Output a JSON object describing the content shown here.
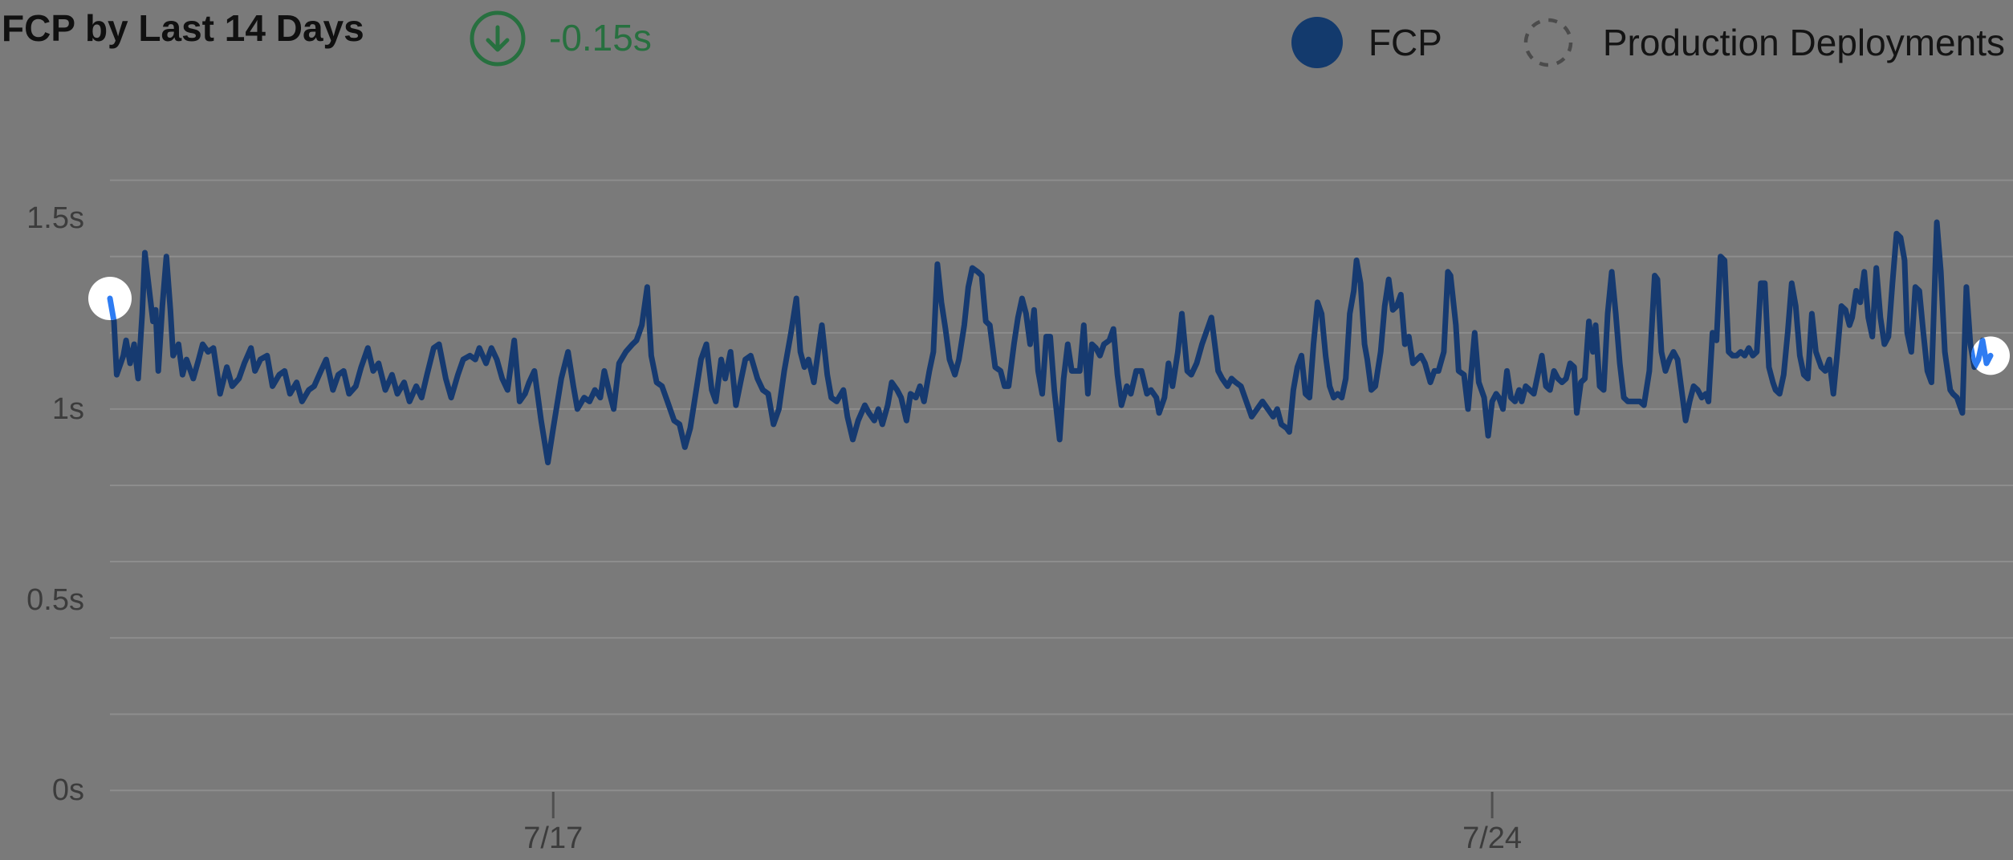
{
  "header": {
    "title": "FCP by Last 14 Days",
    "delta": {
      "value": "-0.15s",
      "direction": "down"
    },
    "legend": [
      {
        "label": "FCP",
        "marker": "filled-circle"
      },
      {
        "label": "Production Deployments",
        "marker": "dashed-circle"
      }
    ]
  },
  "colors": {
    "background": "#7a7a7a",
    "gridline": "#8d8d8d",
    "tick": "#4f4f4f",
    "fcp_line": "#163a70",
    "fcp_dot": "#133a6d",
    "highlight_blue": "#2e7cf2",
    "endpoint_marker": "#ffffff",
    "delta_green": "#27703f",
    "title_text": "#101010",
    "axis_text": "#3c3c3c",
    "deployments_marker": "#4b4b4b"
  },
  "chart_data": {
    "type": "line",
    "title": "FCP by Last 14 Days",
    "series_name": "FCP",
    "unit": "s",
    "x_unit": "days from start of 14-day window",
    "legend_position": "top-right",
    "grid": true,
    "y_axis": {
      "ticks": [
        "0s",
        "0.5s",
        "1s",
        "1.5s"
      ],
      "tick_values": [
        0,
        0.5,
        1,
        1.5
      ],
      "range": [
        0,
        1.72
      ],
      "gridline_step": 0.2,
      "gridline_max": 1.6
    },
    "x_axis": {
      "range_days": [
        0,
        14
      ],
      "ticks": [
        {
          "label": "7/17",
          "d": 3.3
        },
        {
          "label": "7/24",
          "d": 10.29
        }
      ]
    },
    "points": [
      [
        0,
        1.29
      ],
      [
        0.03,
        1.23
      ],
      [
        0.05,
        1.09
      ],
      [
        0.1,
        1.14
      ],
      [
        0.12,
        1.18
      ],
      [
        0.15,
        1.12
      ],
      [
        0.18,
        1.17
      ],
      [
        0.21,
        1.08
      ],
      [
        0.24,
        1.25
      ],
      [
        0.26,
        1.41
      ],
      [
        0.29,
        1.32
      ],
      [
        0.32,
        1.23
      ],
      [
        0.34,
        1.26
      ],
      [
        0.36,
        1.1
      ],
      [
        0.39,
        1.27
      ],
      [
        0.42,
        1.4
      ],
      [
        0.45,
        1.26
      ],
      [
        0.47,
        1.14
      ],
      [
        0.51,
        1.17
      ],
      [
        0.54,
        1.09
      ],
      [
        0.57,
        1.13
      ],
      [
        0.62,
        1.08
      ],
      [
        0.66,
        1.13
      ],
      [
        0.69,
        1.17
      ],
      [
        0.73,
        1.15
      ],
      [
        0.77,
        1.16
      ],
      [
        0.8,
        1.09
      ],
      [
        0.82,
        1.04
      ],
      [
        0.87,
        1.11
      ],
      [
        0.91,
        1.06
      ],
      [
        0.96,
        1.08
      ],
      [
        1,
        1.12
      ],
      [
        1.05,
        1.16
      ],
      [
        1.08,
        1.1
      ],
      [
        1.12,
        1.13
      ],
      [
        1.17,
        1.14
      ],
      [
        1.21,
        1.06
      ],
      [
        1.26,
        1.09
      ],
      [
        1.3,
        1.1
      ],
      [
        1.34,
        1.04
      ],
      [
        1.39,
        1.07
      ],
      [
        1.43,
        1.02
      ],
      [
        1.48,
        1.05
      ],
      [
        1.52,
        1.06
      ],
      [
        1.57,
        1.1
      ],
      [
        1.61,
        1.13
      ],
      [
        1.66,
        1.05
      ],
      [
        1.7,
        1.09
      ],
      [
        1.74,
        1.1
      ],
      [
        1.78,
        1.04
      ],
      [
        1.83,
        1.06
      ],
      [
        1.87,
        1.11
      ],
      [
        1.92,
        1.16
      ],
      [
        1.96,
        1.1
      ],
      [
        2,
        1.12
      ],
      [
        2.05,
        1.05
      ],
      [
        2.1,
        1.09
      ],
      [
        2.14,
        1.04
      ],
      [
        2.19,
        1.07
      ],
      [
        2.23,
        1.02
      ],
      [
        2.28,
        1.06
      ],
      [
        2.32,
        1.03
      ],
      [
        2.36,
        1.09
      ],
      [
        2.41,
        1.16
      ],
      [
        2.45,
        1.17
      ],
      [
        2.5,
        1.08
      ],
      [
        2.54,
        1.03
      ],
      [
        2.59,
        1.09
      ],
      [
        2.63,
        1.13
      ],
      [
        2.68,
        1.14
      ],
      [
        2.72,
        1.13
      ],
      [
        2.75,
        1.16
      ],
      [
        2.8,
        1.12
      ],
      [
        2.84,
        1.16
      ],
      [
        2.88,
        1.13
      ],
      [
        2.92,
        1.08
      ],
      [
        2.96,
        1.05
      ],
      [
        3.01,
        1.18
      ],
      [
        3.05,
        1.02
      ],
      [
        3.09,
        1.04
      ],
      [
        3.12,
        1.07
      ],
      [
        3.16,
        1.1
      ],
      [
        3.21,
        0.97
      ],
      [
        3.26,
        0.86
      ],
      [
        3.3,
        0.95
      ],
      [
        3.36,
        1.08
      ],
      [
        3.41,
        1.15
      ],
      [
        3.45,
        1.06
      ],
      [
        3.48,
        1
      ],
      [
        3.53,
        1.03
      ],
      [
        3.57,
        1.02
      ],
      [
        3.61,
        1.05
      ],
      [
        3.65,
        1.03
      ],
      [
        3.68,
        1.1
      ],
      [
        3.72,
        1.04
      ],
      [
        3.75,
        1
      ],
      [
        3.79,
        1.12
      ],
      [
        3.84,
        1.15
      ],
      [
        3.89,
        1.17
      ],
      [
        3.92,
        1.18
      ],
      [
        3.96,
        1.22
      ],
      [
        4,
        1.32
      ],
      [
        4.03,
        1.14
      ],
      [
        4.07,
        1.07
      ],
      [
        4.11,
        1.06
      ],
      [
        4.16,
        1.01
      ],
      [
        4.2,
        0.97
      ],
      [
        4.24,
        0.96
      ],
      [
        4.28,
        0.9
      ],
      [
        4.32,
        0.95
      ],
      [
        4.36,
        1.04
      ],
      [
        4.4,
        1.13
      ],
      [
        4.44,
        1.17
      ],
      [
        4.48,
        1.05
      ],
      [
        4.51,
        1.02
      ],
      [
        4.55,
        1.13
      ],
      [
        4.58,
        1.08
      ],
      [
        4.62,
        1.15
      ],
      [
        4.66,
        1.01
      ],
      [
        4.7,
        1.08
      ],
      [
        4.73,
        1.13
      ],
      [
        4.77,
        1.14
      ],
      [
        4.82,
        1.08
      ],
      [
        4.86,
        1.05
      ],
      [
        4.9,
        1.04
      ],
      [
        4.94,
        0.96
      ],
      [
        4.98,
        1
      ],
      [
        5.02,
        1.1
      ],
      [
        5.07,
        1.2
      ],
      [
        5.11,
        1.29
      ],
      [
        5.14,
        1.15
      ],
      [
        5.17,
        1.11
      ],
      [
        5.2,
        1.13
      ],
      [
        5.24,
        1.07
      ],
      [
        5.28,
        1.17
      ],
      [
        5.3,
        1.22
      ],
      [
        5.34,
        1.09
      ],
      [
        5.37,
        1.03
      ],
      [
        5.41,
        1.02
      ],
      [
        5.46,
        1.05
      ],
      [
        5.49,
        0.98
      ],
      [
        5.53,
        0.92
      ],
      [
        5.57,
        0.97
      ],
      [
        5.62,
        1.01
      ],
      [
        5.65,
        0.99
      ],
      [
        5.69,
        0.97
      ],
      [
        5.72,
        1
      ],
      [
        5.75,
        0.96
      ],
      [
        5.79,
        1.01
      ],
      [
        5.82,
        1.07
      ],
      [
        5.86,
        1.05
      ],
      [
        5.89,
        1.03
      ],
      [
        5.93,
        0.97
      ],
      [
        5.96,
        1.04
      ],
      [
        6,
        1.03
      ],
      [
        6.03,
        1.06
      ],
      [
        6.06,
        1.02
      ],
      [
        6.1,
        1.1
      ],
      [
        6.13,
        1.15
      ],
      [
        6.16,
        1.38
      ],
      [
        6.19,
        1.28
      ],
      [
        6.22,
        1.21
      ],
      [
        6.25,
        1.13
      ],
      [
        6.29,
        1.09
      ],
      [
        6.32,
        1.13
      ],
      [
        6.36,
        1.22
      ],
      [
        6.39,
        1.32
      ],
      [
        6.42,
        1.37
      ],
      [
        6.46,
        1.36
      ],
      [
        6.49,
        1.35
      ],
      [
        6.52,
        1.23
      ],
      [
        6.55,
        1.22
      ],
      [
        6.59,
        1.11
      ],
      [
        6.63,
        1.1
      ],
      [
        6.66,
        1.06
      ],
      [
        6.69,
        1.06
      ],
      [
        6.73,
        1.17
      ],
      [
        6.76,
        1.24
      ],
      [
        6.79,
        1.29
      ],
      [
        6.82,
        1.25
      ],
      [
        6.85,
        1.17
      ],
      [
        6.88,
        1.26
      ],
      [
        6.91,
        1.1
      ],
      [
        6.94,
        1.04
      ],
      [
        6.97,
        1.19
      ],
      [
        7,
        1.19
      ],
      [
        7.03,
        1.05
      ],
      [
        7.07,
        0.92
      ],
      [
        7.1,
        1.08
      ],
      [
        7.13,
        1.17
      ],
      [
        7.16,
        1.1
      ],
      [
        7.19,
        1.1
      ],
      [
        7.22,
        1.1
      ],
      [
        7.25,
        1.22
      ],
      [
        7.28,
        1.04
      ],
      [
        7.31,
        1.17
      ],
      [
        7.34,
        1.16
      ],
      [
        7.37,
        1.14
      ],
      [
        7.4,
        1.17
      ],
      [
        7.44,
        1.18
      ],
      [
        7.47,
        1.21
      ],
      [
        7.5,
        1.09
      ],
      [
        7.53,
        1.01
      ],
      [
        7.57,
        1.06
      ],
      [
        7.6,
        1.04
      ],
      [
        7.64,
        1.1
      ],
      [
        7.68,
        1.1
      ],
      [
        7.72,
        1.04
      ],
      [
        7.75,
        1.05
      ],
      [
        7.79,
        1.03
      ],
      [
        7.81,
        0.99
      ],
      [
        7.85,
        1.03
      ],
      [
        7.88,
        1.12
      ],
      [
        7.91,
        1.06
      ],
      [
        7.95,
        1.15
      ],
      [
        7.98,
        1.25
      ],
      [
        8.02,
        1.1
      ],
      [
        8.05,
        1.09
      ],
      [
        8.09,
        1.12
      ],
      [
        8.13,
        1.17
      ],
      [
        8.17,
        1.21
      ],
      [
        8.2,
        1.24
      ],
      [
        8.25,
        1.1
      ],
      [
        8.28,
        1.08
      ],
      [
        8.32,
        1.06
      ],
      [
        8.35,
        1.08
      ],
      [
        8.38,
        1.07
      ],
      [
        8.42,
        1.06
      ],
      [
        8.46,
        1.02
      ],
      [
        8.5,
        0.98
      ],
      [
        8.54,
        1
      ],
      [
        8.58,
        1.02
      ],
      [
        8.62,
        1
      ],
      [
        8.66,
        0.98
      ],
      [
        8.69,
        1
      ],
      [
        8.72,
        0.96
      ],
      [
        8.76,
        0.95
      ],
      [
        8.78,
        0.94
      ],
      [
        8.81,
        1.05
      ],
      [
        8.84,
        1.11
      ],
      [
        8.87,
        1.14
      ],
      [
        8.9,
        1.04
      ],
      [
        8.93,
        1.03
      ],
      [
        8.96,
        1.17
      ],
      [
        8.99,
        1.28
      ],
      [
        9.02,
        1.25
      ],
      [
        9.05,
        1.14
      ],
      [
        9.08,
        1.06
      ],
      [
        9.11,
        1.03
      ],
      [
        9.14,
        1.04
      ],
      [
        9.17,
        1.03
      ],
      [
        9.2,
        1.08
      ],
      [
        9.23,
        1.25
      ],
      [
        9.26,
        1.31
      ],
      [
        9.28,
        1.39
      ],
      [
        9.31,
        1.33
      ],
      [
        9.34,
        1.17
      ],
      [
        9.36,
        1.13
      ],
      [
        9.39,
        1.05
      ],
      [
        9.42,
        1.06
      ],
      [
        9.46,
        1.15
      ],
      [
        9.49,
        1.27
      ],
      [
        9.52,
        1.34
      ],
      [
        9.55,
        1.26
      ],
      [
        9.58,
        1.27
      ],
      [
        9.61,
        1.3
      ],
      [
        9.64,
        1.17
      ],
      [
        9.67,
        1.19
      ],
      [
        9.7,
        1.12
      ],
      [
        9.73,
        1.13
      ],
      [
        9.76,
        1.14
      ],
      [
        9.79,
        1.12
      ],
      [
        9.83,
        1.07
      ],
      [
        9.86,
        1.1
      ],
      [
        9.89,
        1.1
      ],
      [
        9.93,
        1.15
      ],
      [
        9.96,
        1.36
      ],
      [
        9.98,
        1.35
      ],
      [
        10.02,
        1.22
      ],
      [
        10.04,
        1.1
      ],
      [
        10.08,
        1.09
      ],
      [
        10.11,
        1
      ],
      [
        10.14,
        1.12
      ],
      [
        10.16,
        1.2
      ],
      [
        10.19,
        1.07
      ],
      [
        10.23,
        1.03
      ],
      [
        10.26,
        0.93
      ],
      [
        10.29,
        1.02
      ],
      [
        10.32,
        1.04
      ],
      [
        10.34,
        1.03
      ],
      [
        10.37,
        1
      ],
      [
        10.4,
        1.1
      ],
      [
        10.43,
        1.03
      ],
      [
        10.46,
        1.02
      ],
      [
        10.49,
        1.05
      ],
      [
        10.51,
        1.02
      ],
      [
        10.54,
        1.06
      ],
      [
        10.57,
        1.05
      ],
      [
        10.6,
        1.04
      ],
      [
        10.63,
        1.09
      ],
      [
        10.66,
        1.14
      ],
      [
        10.69,
        1.06
      ],
      [
        10.72,
        1.05
      ],
      [
        10.75,
        1.1
      ],
      [
        10.78,
        1.08
      ],
      [
        10.81,
        1.07
      ],
      [
        10.84,
        1.08
      ],
      [
        10.87,
        1.12
      ],
      [
        10.9,
        1.11
      ],
      [
        10.92,
        0.99
      ],
      [
        10.95,
        1.07
      ],
      [
        10.98,
        1.08
      ],
      [
        11.01,
        1.23
      ],
      [
        11.04,
        1.15
      ],
      [
        11.06,
        1.22
      ],
      [
        11.09,
        1.06
      ],
      [
        11.12,
        1.05
      ],
      [
        11.15,
        1.25
      ],
      [
        11.18,
        1.36
      ],
      [
        11.21,
        1.25
      ],
      [
        11.24,
        1.12
      ],
      [
        11.27,
        1.03
      ],
      [
        11.3,
        1.02
      ],
      [
        11.35,
        1.02
      ],
      [
        11.39,
        1.02
      ],
      [
        11.42,
        1.01
      ],
      [
        11.46,
        1.1
      ],
      [
        11.5,
        1.35
      ],
      [
        11.52,
        1.34
      ],
      [
        11.55,
        1.15
      ],
      [
        11.58,
        1.1
      ],
      [
        11.61,
        1.13
      ],
      [
        11.64,
        1.15
      ],
      [
        11.67,
        1.13
      ],
      [
        11.7,
        1.05
      ],
      [
        11.73,
        0.97
      ],
      [
        11.76,
        1.02
      ],
      [
        11.79,
        1.06
      ],
      [
        11.82,
        1.05
      ],
      [
        11.85,
        1.03
      ],
      [
        11.88,
        1.04
      ],
      [
        11.9,
        1.02
      ],
      [
        11.93,
        1.2
      ],
      [
        11.96,
        1.18
      ],
      [
        11.99,
        1.4
      ],
      [
        12.02,
        1.39
      ],
      [
        12.05,
        1.15
      ],
      [
        12.08,
        1.14
      ],
      [
        12.11,
        1.14
      ],
      [
        12.14,
        1.15
      ],
      [
        12.17,
        1.14
      ],
      [
        12.2,
        1.16
      ],
      [
        12.23,
        1.14
      ],
      [
        12.26,
        1.15
      ],
      [
        12.29,
        1.33
      ],
      [
        12.32,
        1.33
      ],
      [
        12.35,
        1.11
      ],
      [
        12.38,
        1.07
      ],
      [
        12.4,
        1.05
      ],
      [
        12.43,
        1.04
      ],
      [
        12.46,
        1.09
      ],
      [
        12.49,
        1.2
      ],
      [
        12.52,
        1.33
      ],
      [
        12.55,
        1.27
      ],
      [
        12.58,
        1.14
      ],
      [
        12.61,
        1.09
      ],
      [
        12.64,
        1.08
      ],
      [
        12.67,
        1.25
      ],
      [
        12.7,
        1.15
      ],
      [
        12.74,
        1.11
      ],
      [
        12.77,
        1.1
      ],
      [
        12.8,
        1.13
      ],
      [
        12.83,
        1.04
      ],
      [
        12.86,
        1.15
      ],
      [
        12.89,
        1.27
      ],
      [
        12.92,
        1.26
      ],
      [
        12.95,
        1.22
      ],
      [
        12.97,
        1.24
      ],
      [
        13,
        1.31
      ],
      [
        13.03,
        1.28
      ],
      [
        13.06,
        1.36
      ],
      [
        13.09,
        1.24
      ],
      [
        13.12,
        1.19
      ],
      [
        13.15,
        1.37
      ],
      [
        13.18,
        1.24
      ],
      [
        13.21,
        1.17
      ],
      [
        13.24,
        1.19
      ],
      [
        13.27,
        1.33
      ],
      [
        13.3,
        1.46
      ],
      [
        13.33,
        1.45
      ],
      [
        13.36,
        1.39
      ],
      [
        13.38,
        1.2
      ],
      [
        13.41,
        1.15
      ],
      [
        13.44,
        1.32
      ],
      [
        13.47,
        1.31
      ],
      [
        13.5,
        1.2
      ],
      [
        13.53,
        1.1
      ],
      [
        13.56,
        1.07
      ],
      [
        13.6,
        1.49
      ],
      [
        13.63,
        1.36
      ],
      [
        13.66,
        1.15
      ],
      [
        13.7,
        1.05
      ],
      [
        13.72,
        1.04
      ],
      [
        13.75,
        1.03
      ],
      [
        13.79,
        0.99
      ],
      [
        13.82,
        1.32
      ],
      [
        13.85,
        1.17
      ],
      [
        13.88,
        1.11
      ],
      [
        13.91,
        1.13
      ],
      [
        13.94,
        1.18
      ],
      [
        13.97,
        1.12
      ],
      [
        14,
        1.14
      ]
    ]
  }
}
